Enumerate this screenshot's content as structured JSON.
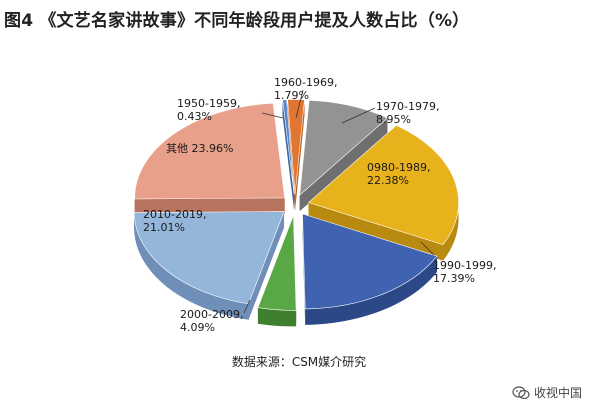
{
  "chart_data": {
    "type": "pie",
    "title": "图4 《文艺名家讲故事》不同年龄段用户提及人数占比（%）",
    "slices": [
      {
        "label": "1960-1969,",
        "value": 1.79,
        "value_text": "1.79%",
        "color": "#e0762f",
        "side": "#b85c1f"
      },
      {
        "label": "1970-1979,",
        "value": 8.95,
        "value_text": "8.95%",
        "color": "#939393",
        "side": "#6f6f6f"
      },
      {
        "label": "0980-1989,",
        "value": 22.38,
        "value_text": "22.38%",
        "color": "#e8b21c",
        "side": "#b88a10"
      },
      {
        "label": "1990-1999,",
        "value": 17.39,
        "value_text": "17.39%",
        "color": "#3f63b0",
        "side": "#2c4886"
      },
      {
        "label": "2000-2009,",
        "value": 4.09,
        "value_text": "4.09%",
        "color": "#5aa845",
        "side": "#3f7f30"
      },
      {
        "label": "2010-2019,",
        "value": 21.01,
        "value_text": "21.01%",
        "color": "#95b6db",
        "side": "#6f8fb8"
      },
      {
        "label": "其他",
        "value": 23.96,
        "value_text": "23.96%",
        "color": "#e9a08a",
        "side": "#b8735e"
      },
      {
        "label": "1950-1959,",
        "value": 0.43,
        "value_text": "0.43%",
        "color": "#5b87c7",
        "side": "#3f66a0"
      }
    ],
    "source": "数据来源：CSM媒介研究"
  },
  "watermark": "收视中国"
}
